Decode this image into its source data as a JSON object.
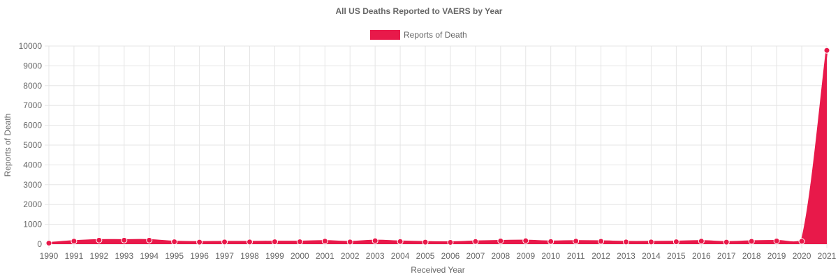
{
  "chart_data": {
    "type": "area",
    "title": "All US Deaths Reported to VAERS by Year",
    "xlabel": "Received Year",
    "ylabel": "Reports of Death",
    "ylim": [
      0,
      10000
    ],
    "yticks": [
      0,
      1000,
      2000,
      3000,
      4000,
      5000,
      6000,
      7000,
      8000,
      9000,
      10000
    ],
    "grid": true,
    "legend_position": "top",
    "colors": {
      "series": "#e8194a",
      "grid": "#e5e5e5",
      "text": "#666666"
    },
    "categories": [
      "1990",
      "1991",
      "1992",
      "1993",
      "1994",
      "1995",
      "1996",
      "1997",
      "1998",
      "1999",
      "2000",
      "2001",
      "2002",
      "2003",
      "2004",
      "2005",
      "2006",
      "2007",
      "2008",
      "2009",
      "2010",
      "2011",
      "2012",
      "2013",
      "2014",
      "2015",
      "2016",
      "2017",
      "2018",
      "2019",
      "2020",
      "2021"
    ],
    "series": [
      {
        "name": "Reports of Death",
        "values": [
          50,
          150,
          200,
          200,
          200,
          120,
          100,
          110,
          110,
          120,
          120,
          150,
          110,
          170,
          130,
          100,
          90,
          130,
          160,
          170,
          130,
          150,
          140,
          110,
          110,
          120,
          150,
          100,
          140,
          160,
          140,
          9780
        ]
      }
    ]
  }
}
